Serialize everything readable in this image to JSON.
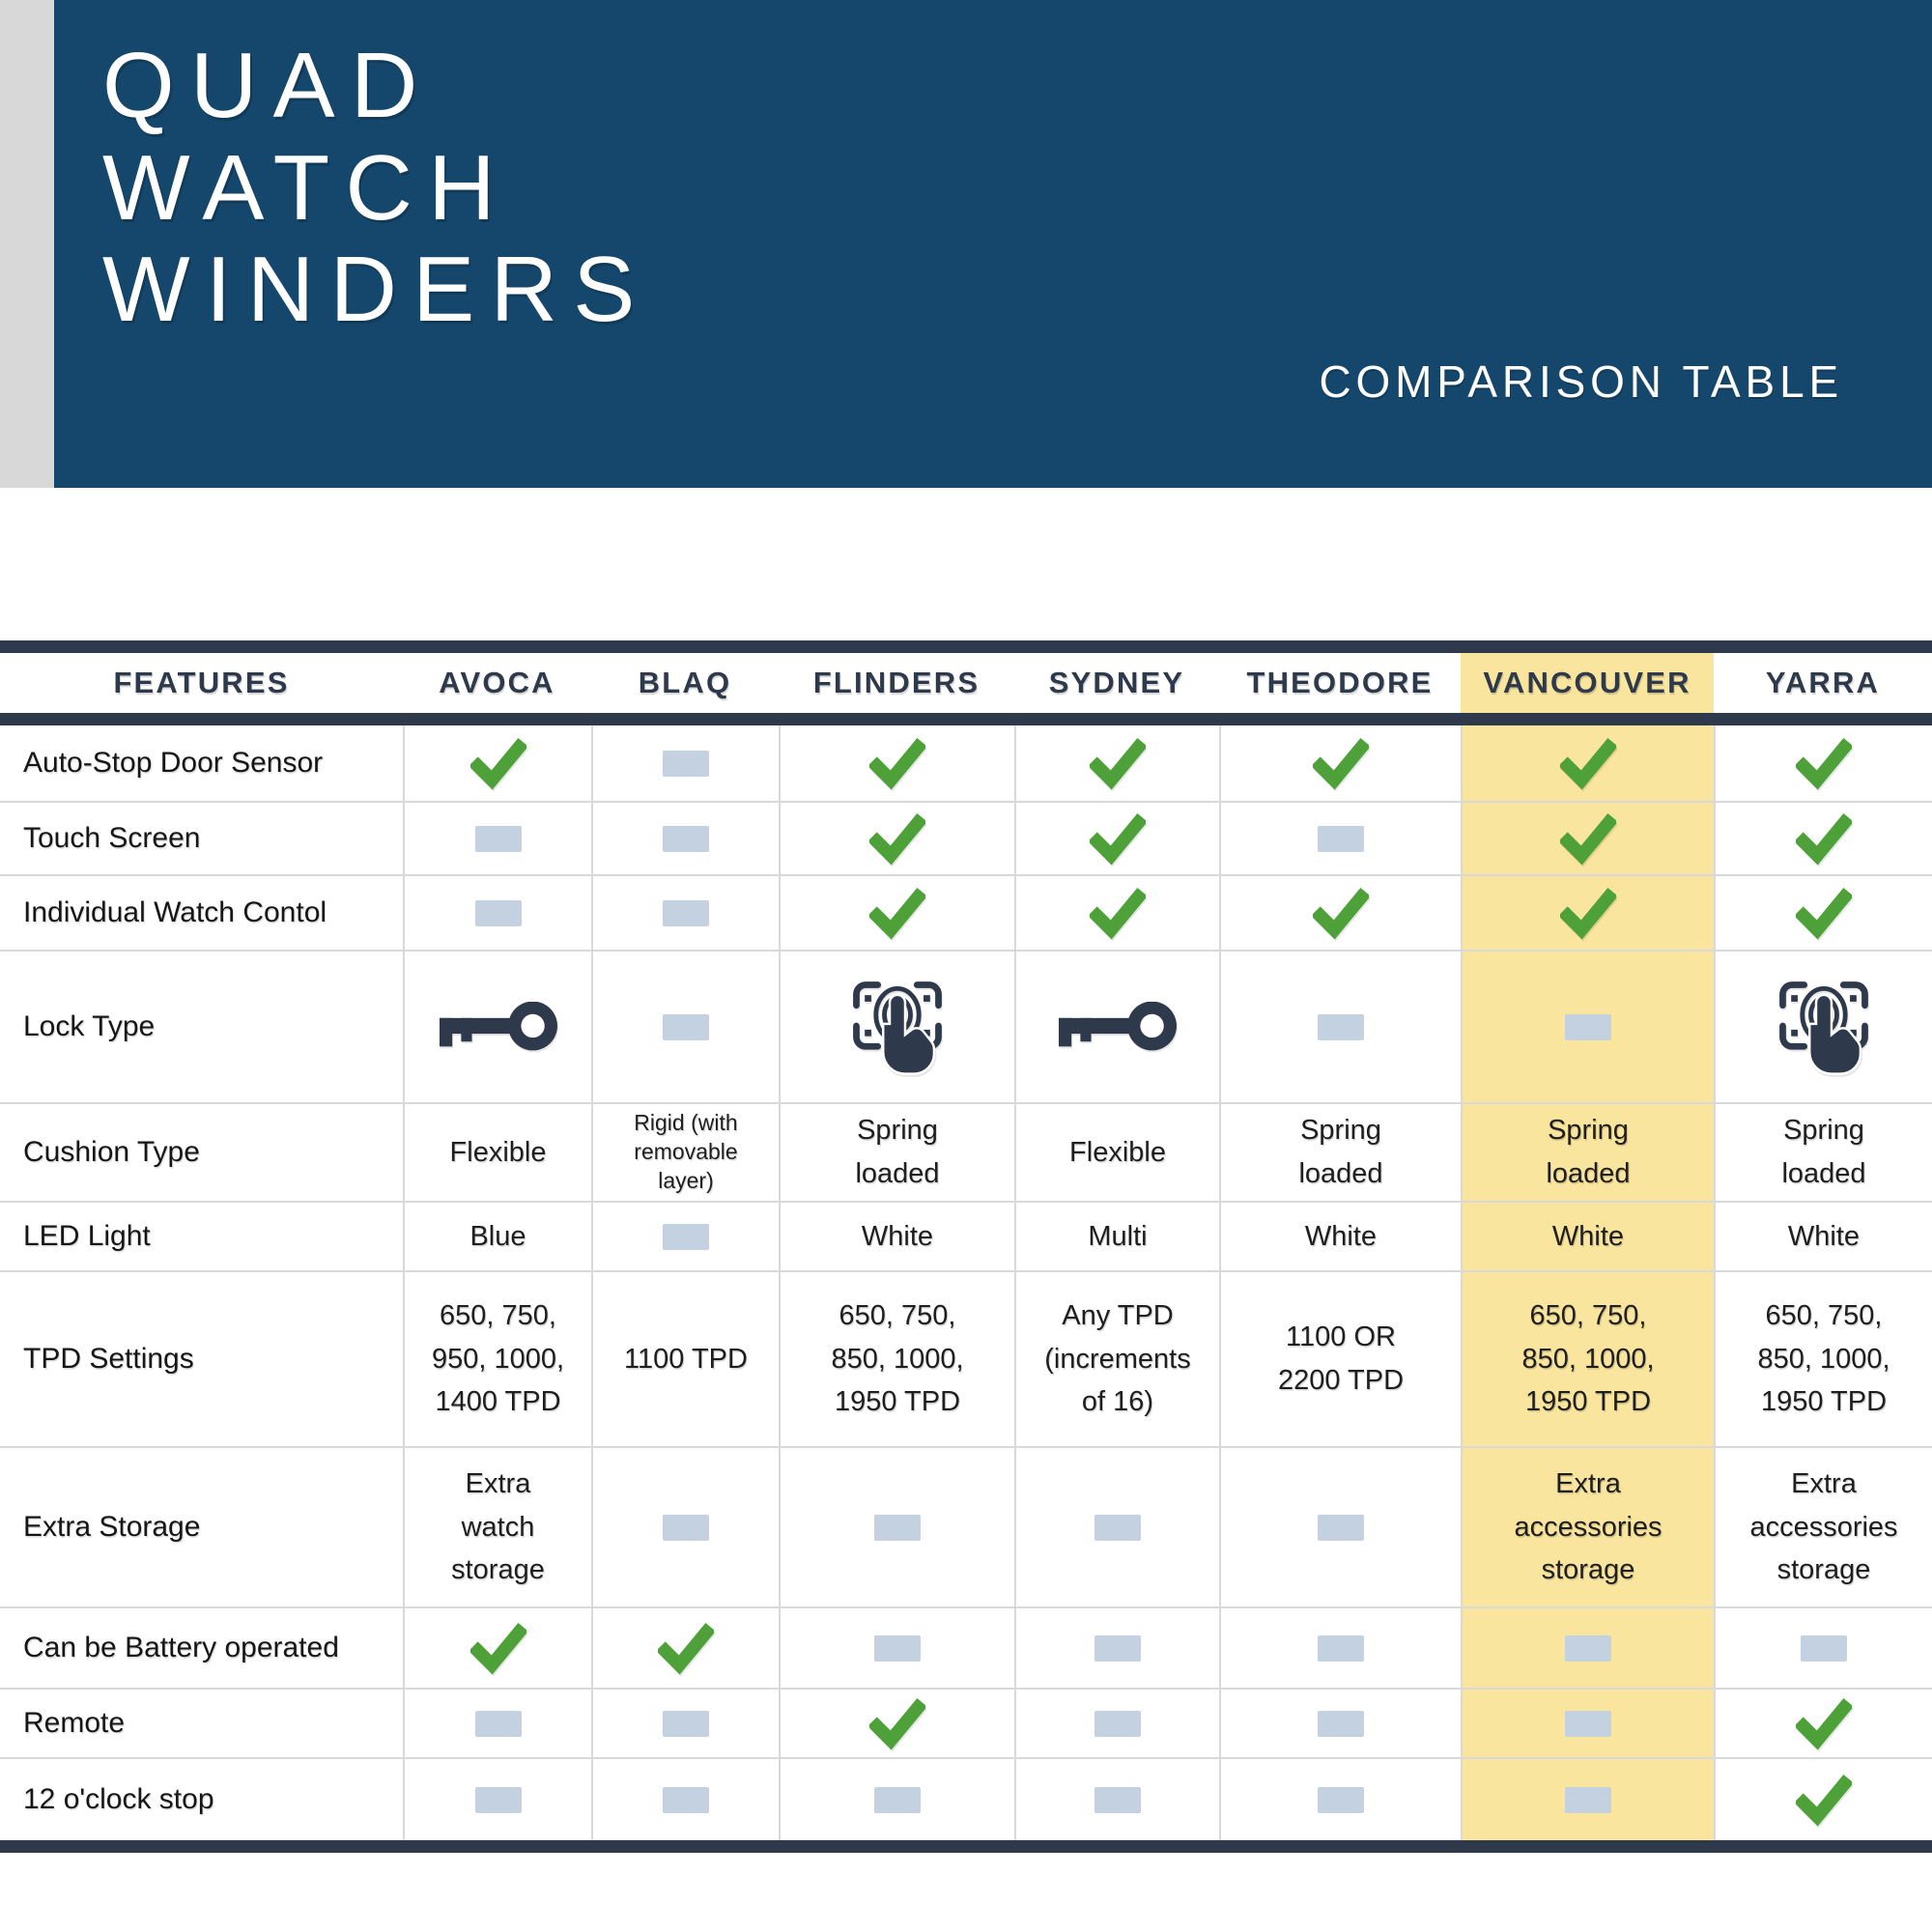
{
  "header": {
    "title_lines": [
      "QUAD",
      "WATCH",
      "WINDERS"
    ],
    "subtitle": "COMPARISON TABLE"
  },
  "colors": {
    "band_navy": "#15476D",
    "slate_navy": "#2E3A4B",
    "check_green": "#4EA139",
    "dash_gray": "#C4D1E1",
    "highlight_yellow": "#FAE59E",
    "stripe_gray": "#D8D8D8",
    "grid_line": "#D9D9D9",
    "cell_text": "#1E1E1E"
  },
  "table": {
    "features_header": "FEATURES",
    "columns": [
      "AVOCA",
      "BLAQ",
      "FLINDERS",
      "SYDNEY",
      "THEODORE",
      "VANCOUVER",
      "YARRA"
    ],
    "highlighted_column": "VANCOUVER",
    "rows": [
      {
        "feature": "Auto-Stop Door Sensor",
        "cells": [
          {
            "type": "check"
          },
          {
            "type": "dash"
          },
          {
            "type": "check"
          },
          {
            "type": "check"
          },
          {
            "type": "check"
          },
          {
            "type": "check"
          },
          {
            "type": "check"
          }
        ]
      },
      {
        "feature": "Touch Screen",
        "cells": [
          {
            "type": "dash"
          },
          {
            "type": "dash"
          },
          {
            "type": "check"
          },
          {
            "type": "check"
          },
          {
            "type": "dash"
          },
          {
            "type": "check"
          },
          {
            "type": "check"
          }
        ]
      },
      {
        "feature": "Individual Watch Contol",
        "cells": [
          {
            "type": "dash"
          },
          {
            "type": "dash"
          },
          {
            "type": "check"
          },
          {
            "type": "check"
          },
          {
            "type": "check"
          },
          {
            "type": "check"
          },
          {
            "type": "check"
          }
        ]
      },
      {
        "feature": "Lock Type",
        "cells": [
          {
            "type": "key"
          },
          {
            "type": "dash"
          },
          {
            "type": "fingerprint"
          },
          {
            "type": "key"
          },
          {
            "type": "dash"
          },
          {
            "type": "dash"
          },
          {
            "type": "fingerprint"
          }
        ]
      },
      {
        "feature": "Cushion Type",
        "cells": [
          {
            "type": "text",
            "value": "Flexible"
          },
          {
            "type": "text",
            "value": "Rigid (with\nremovable\nlayer)",
            "small": true
          },
          {
            "type": "text",
            "value": "Spring\nloaded"
          },
          {
            "type": "text",
            "value": "Flexible"
          },
          {
            "type": "text",
            "value": "Spring\nloaded"
          },
          {
            "type": "text",
            "value": "Spring\nloaded"
          },
          {
            "type": "text",
            "value": "Spring\nloaded"
          }
        ]
      },
      {
        "feature": "LED Light",
        "cells": [
          {
            "type": "text",
            "value": "Blue"
          },
          {
            "type": "dash"
          },
          {
            "type": "text",
            "value": "White"
          },
          {
            "type": "text",
            "value": "Multi"
          },
          {
            "type": "text",
            "value": "White"
          },
          {
            "type": "text",
            "value": "White"
          },
          {
            "type": "text",
            "value": "White"
          }
        ]
      },
      {
        "feature": "TPD Settings",
        "cells": [
          {
            "type": "text",
            "value": "650, 750,\n950, 1000,\n1400 TPD"
          },
          {
            "type": "text",
            "value": "1100 TPD"
          },
          {
            "type": "text",
            "value": "650, 750,\n850, 1000,\n1950 TPD"
          },
          {
            "type": "text",
            "value": "Any TPD\n(increments\nof 16)"
          },
          {
            "type": "text",
            "value": "1100 OR\n2200 TPD"
          },
          {
            "type": "text",
            "value": "650, 750,\n850, 1000,\n1950 TPD"
          },
          {
            "type": "text",
            "value": "650, 750,\n850, 1000,\n1950 TPD"
          }
        ]
      },
      {
        "feature": "Extra Storage",
        "cells": [
          {
            "type": "text",
            "value": "Extra\nwatch\nstorage"
          },
          {
            "type": "dash"
          },
          {
            "type": "dash"
          },
          {
            "type": "dash"
          },
          {
            "type": "dash"
          },
          {
            "type": "text",
            "value": "Extra\naccessories\nstorage"
          },
          {
            "type": "text",
            "value": "Extra\naccessories\nstorage"
          }
        ]
      },
      {
        "feature": "Can be Battery operated",
        "cells": [
          {
            "type": "check"
          },
          {
            "type": "check"
          },
          {
            "type": "dash"
          },
          {
            "type": "dash"
          },
          {
            "type": "dash"
          },
          {
            "type": "dash"
          },
          {
            "type": "dash"
          }
        ]
      },
      {
        "feature": "Remote",
        "cells": [
          {
            "type": "dash"
          },
          {
            "type": "dash"
          },
          {
            "type": "check"
          },
          {
            "type": "dash"
          },
          {
            "type": "dash"
          },
          {
            "type": "dash"
          },
          {
            "type": "check"
          }
        ]
      },
      {
        "feature": "12 o'clock stop",
        "cells": [
          {
            "type": "dash"
          },
          {
            "type": "dash"
          },
          {
            "type": "dash"
          },
          {
            "type": "dash"
          },
          {
            "type": "dash"
          },
          {
            "type": "dash"
          },
          {
            "type": "check"
          }
        ]
      }
    ]
  }
}
